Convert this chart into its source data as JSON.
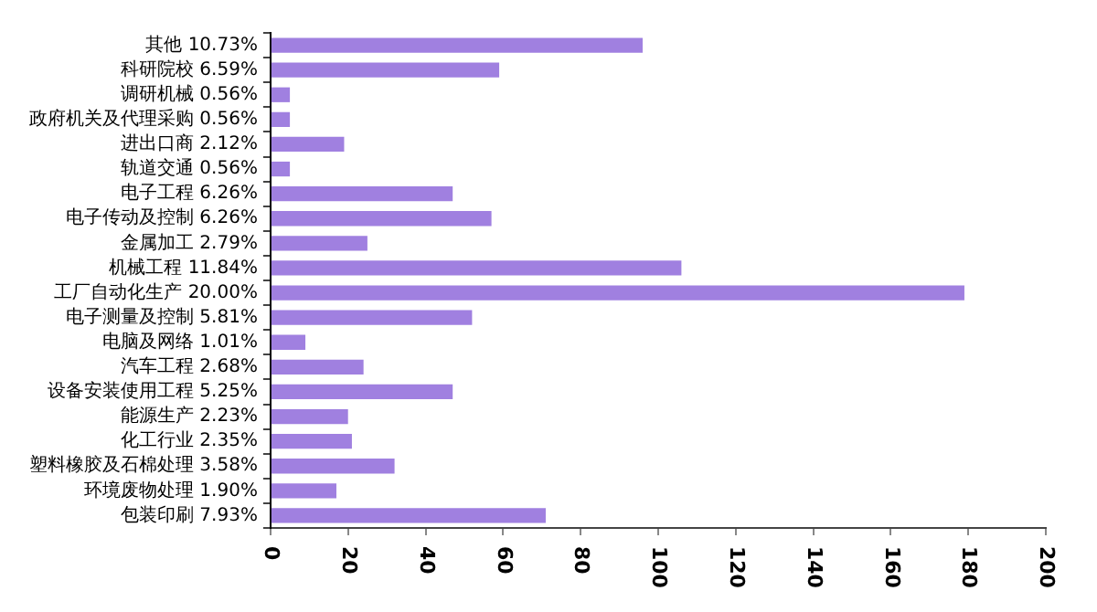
{
  "chart_data": {
    "type": "bar",
    "orientation": "horizontal",
    "categories": [
      "其他 10.73%",
      "科研院校 6.59%",
      "调研机械 0.56%",
      "政府机关及代理采购 0.56%",
      "进出口商 2.12%",
      "轨道交通 0.56%",
      "电子工程 6.26%",
      "电子传动及控制 6.26%",
      "金属加工 2.79%",
      "机械工程 11.84%",
      "工厂自动化生产 20.00%",
      "电子测量及控制 5.81%",
      "电脑及网络 1.01%",
      "汽车工程 2.68%",
      "设备安装使用工程 5.25%",
      "能源生产 2.23%",
      "化工行业 2.35%",
      "塑料橡胶及石棉处理 3.58%",
      "环境废物处理 1.90%",
      "包装印刷 7.93%"
    ],
    "values": [
      96,
      59,
      5,
      5,
      19,
      5,
      47,
      57,
      25,
      106,
      179,
      52,
      9,
      24,
      47,
      20,
      21,
      32,
      17,
      71
    ],
    "color": "#a080e0",
    "xlim": [
      0,
      200
    ],
    "xticks": [
      0,
      20,
      40,
      60,
      80,
      100,
      120,
      140,
      160,
      180,
      200
    ],
    "grid": false,
    "legend": false
  }
}
